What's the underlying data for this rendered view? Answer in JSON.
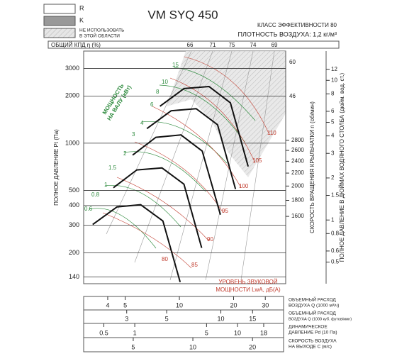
{
  "legend": {
    "items": [
      "R",
      "K"
    ],
    "area_lines": [
      "НЕ ИСПОЛЬЗОВАТЬ",
      "В ЭТОЙ ОБЛАСТИ"
    ]
  },
  "chart_data": {
    "type": "line",
    "title": "VM SYQ 450",
    "subtitle": [
      "КЛАСС ЭФФЕКТИВНОСТИ 80",
      "ПЛОТНОСТЬ ВОЗДУХА: 1,2 кг/м³"
    ],
    "ylabel": "ПОЛНОЕ ДАВЛЕНИЕ Pt (Па)",
    "log_y": true,
    "log_x": true,
    "grid": true,
    "ylim": [
      127,
      3870
    ],
    "yticks": [
      140,
      200,
      300,
      400,
      500,
      1000,
      2000,
      3000
    ],
    "xlim": [
      2.94,
      37.9
    ],
    "xticks": [
      4,
      5,
      10,
      20,
      30
    ],
    "xlabel": [
      "ОБЪЕМНЫЙ РАСХОД",
      "ВОЗДУХА Q (1000 м³/ч)"
    ],
    "efficiency_label": "ОБЩИЙ КПД η (%)",
    "efficiency_values": [
      66,
      71,
      75,
      74,
      69
    ],
    "power_label": [
      "МОЩНОСТЬ",
      "НА ВАЛУ (кВт)"
    ],
    "power_values": [
      15,
      10,
      8,
      6,
      4,
      3,
      2,
      1.5,
      1,
      0.8,
      0.6
    ],
    "sound_label": [
      "УРОВЕНЬ ЗВУКОВОЙ",
      "МОЩНОСТИ LwA, дБ(A)"
    ],
    "sound_values": [
      110,
      105,
      100,
      95,
      90,
      85,
      80
    ],
    "right_values": [
      60,
      46
    ],
    "rpm_axis": {
      "label": "СКОРОСТЬ ВРАЩЕНИЯ КРЫЛЬЧАТКИ n (об/мин)",
      "lim": [
        975,
        5400
      ],
      "ticks": [
        1600,
        1800,
        2000,
        2200,
        2400,
        2600,
        2800
      ]
    },
    "inch_axis": {
      "label": "ПОЛНОЕ ДАВЛЕНИЕ В ДЮЙМАХ ВОДЯНОГО СТОЛБА (дюйм. вод. ст.)",
      "lim": [
        0.35,
        16.2
      ],
      "ticks": [
        0.5,
        0.6,
        0.8,
        1,
        1.5,
        2,
        3,
        4,
        5,
        6,
        8,
        10,
        12
      ]
    },
    "scales": [
      {
        "label": [
          "ОБЪЕМНЫЙ РАСХОД",
          "ВОЗДУХА Q (1000 куб. футов/мин)"
        ],
        "lim": [
          1.73,
          22.3
        ],
        "ticks": [
          3,
          5,
          10,
          15
        ]
      },
      {
        "label": [
          "ДИНАМИЧЕСКОЕ",
          "ДАВЛЕНИЕ Pd (10 Па)"
        ],
        "lim": [
          0.318,
          28.1
        ],
        "ticks": [
          0.5,
          1,
          5,
          10,
          18
        ]
      },
      {
        "label": [
          "СКОРОСТЬ ВОЗДУХА",
          "НА ВЫХОДЕ С (м/с)"
        ],
        "lim": [
          2.81,
          28.7
        ],
        "ticks": [
          5,
          10,
          20
        ]
      }
    ],
    "series": [
      {
        "color": "#111111",
        "x": [
          7.8,
          10.6,
          14.6,
          19.2,
          24.1
        ],
        "values": [
          1720,
          2230,
          2300,
          1810,
          710
        ]
      },
      {
        "color": "#111111",
        "x": [
          6.6,
          9.0,
          12.4,
          16.3,
          20.5
        ],
        "values": [
          1240,
          1610,
          1660,
          1310,
          510
        ]
      },
      {
        "color": "#111111",
        "x": [
          5.5,
          7.4,
          10.2,
          13.4,
          16.9
        ],
        "values": [
          840,
          1090,
          1130,
          890,
          350
        ]
      },
      {
        "color": "#111111",
        "x": [
          4.3,
          5.8,
          8.0,
          10.6,
          13.3
        ],
        "values": [
          520,
          675,
          696,
          548,
          215
        ]
      },
      {
        "color": "#111111",
        "x": [
          3.3,
          4.5,
          6.1,
          8.1,
          10.1
        ],
        "values": [
          303,
          392,
          405,
          319,
          130
        ]
      }
    ]
  }
}
